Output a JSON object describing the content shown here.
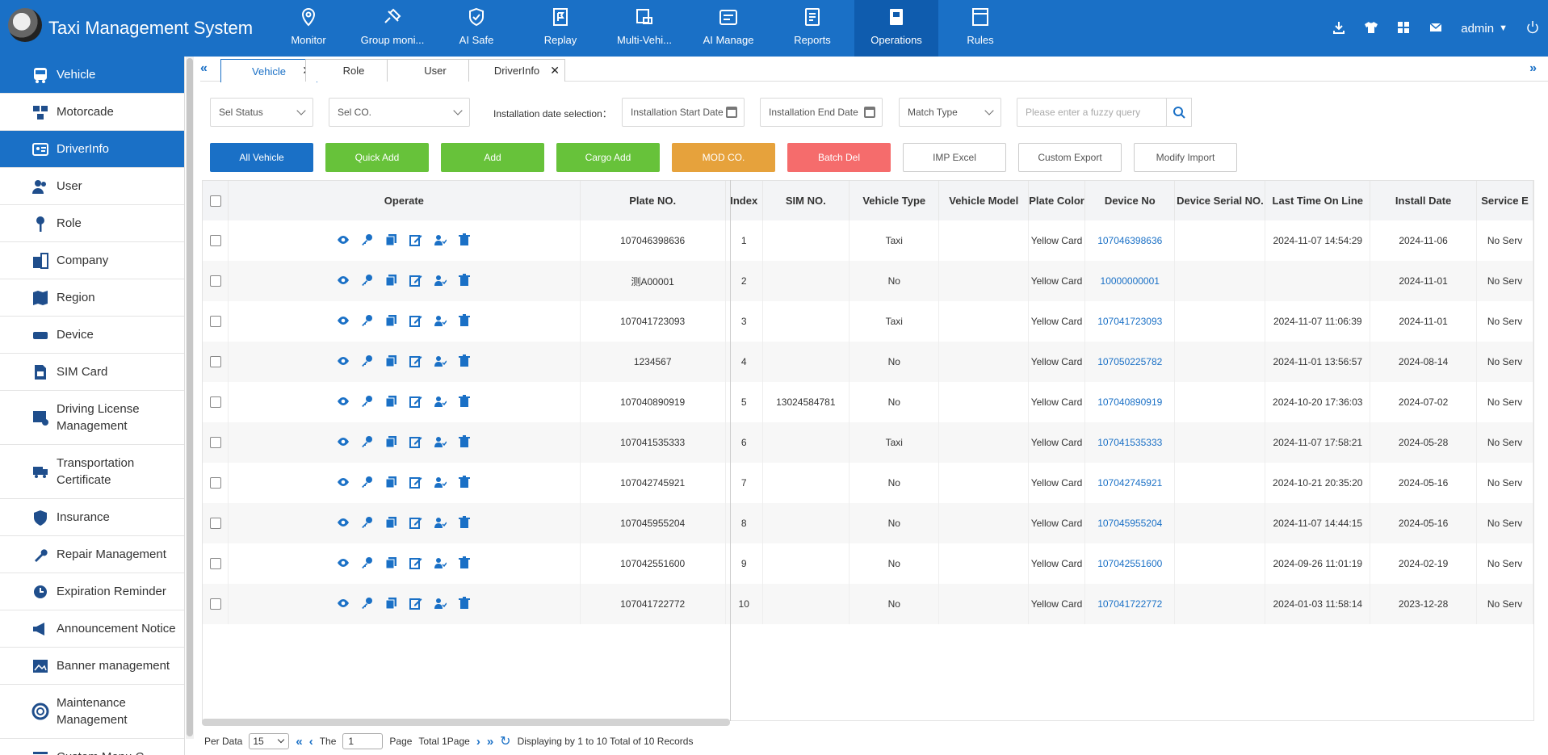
{
  "app": {
    "title": "Taxi Management System"
  },
  "nav": [
    {
      "label": "Monitor",
      "icon": "location-pin-icon"
    },
    {
      "label": "Group moni...",
      "icon": "satellite-icon"
    },
    {
      "label": "AI Safe",
      "icon": "shield-check-icon"
    },
    {
      "label": "Replay",
      "icon": "flag-icon"
    },
    {
      "label": "Multi-Vehi...",
      "icon": "multi-vehicle-icon"
    },
    {
      "label": "AI Manage",
      "icon": "id-card-icon"
    },
    {
      "label": "Reports",
      "icon": "report-icon"
    },
    {
      "label": "Operations",
      "icon": "operations-icon",
      "active": true
    },
    {
      "label": "Rules",
      "icon": "rules-icon"
    }
  ],
  "header_right": {
    "user": "admin"
  },
  "sidebar": [
    {
      "label": "Vehicle",
      "icon": "bus-icon",
      "active": true
    },
    {
      "label": "Motorcade",
      "icon": "motorcade-icon"
    },
    {
      "label": "DriverInfo",
      "icon": "driver-card-icon",
      "active": true
    },
    {
      "label": "User",
      "icon": "users-icon"
    },
    {
      "label": "Role",
      "icon": "key-icon"
    },
    {
      "label": "Company",
      "icon": "company-icon"
    },
    {
      "label": "Region",
      "icon": "map-icon"
    },
    {
      "label": "Device",
      "icon": "device-icon"
    },
    {
      "label": "SIM Card",
      "icon": "sim-card-icon"
    },
    {
      "label": "Driving License Management",
      "icon": "license-icon",
      "tall": true
    },
    {
      "label": "Transportation Certificate",
      "icon": "truck-certificate-icon",
      "tall": true
    },
    {
      "label": "Insurance",
      "icon": "insurance-icon"
    },
    {
      "label": "Repair Management",
      "icon": "wrench-icon"
    },
    {
      "label": "Expiration Reminder",
      "icon": "clock-icon"
    },
    {
      "label": "Announcement Notice",
      "icon": "megaphone-icon"
    },
    {
      "label": "Banner management",
      "icon": "banner-icon"
    },
    {
      "label": "Maintenance Management",
      "icon": "lifebuoy-icon",
      "tall": true
    },
    {
      "label": "Custom Menu C...",
      "icon": "menu-icon"
    }
  ],
  "tabs": [
    {
      "label": "Vehicle",
      "active": true
    },
    {
      "label": "Role"
    },
    {
      "label": "User"
    },
    {
      "label": "DriverInfo"
    }
  ],
  "filters": {
    "status": "Sel Status",
    "company": "Sel CO.",
    "date_label": "Installation date selection：",
    "start_date": "Installation Start Date",
    "end_date": "Installation End Date",
    "match_type": "Match Type",
    "search_placeholder": "Please enter a fuzzy query"
  },
  "buttons": [
    {
      "label": "All Vehicle",
      "color": "#1a70c6"
    },
    {
      "label": "Quick Add",
      "color": "#67c23a"
    },
    {
      "label": "Add",
      "color": "#67c23a"
    },
    {
      "label": "Cargo Add",
      "color": "#67c23a"
    },
    {
      "label": "MOD CO.",
      "color": "#e6a23c"
    },
    {
      "label": "Batch Del",
      "color": "#f56c6c"
    },
    {
      "label": "IMP Excel",
      "color": "#ffffff"
    },
    {
      "label": "Custom Export",
      "color": "#ffffff"
    },
    {
      "label": "Modify Import",
      "color": "#ffffff"
    }
  ],
  "table": {
    "columns": [
      "Operate",
      "Plate NO.",
      "Index",
      "SIM NO.",
      "Vehicle Type",
      "Vehicle Model",
      "Plate Color",
      "Device No",
      "Device Serial NO.",
      "Last Time On Line",
      "Install Date",
      "Service E"
    ],
    "rows": [
      {
        "plate": "107046398636",
        "index": "1",
        "sim": "",
        "type": "Taxi",
        "model": "",
        "color": "Yellow Card",
        "device": "107046398636",
        "serial": "",
        "last": "2024-11-07 14:54:29",
        "install": "2024-11-06",
        "service": "No Serv"
      },
      {
        "plate": "测A00001",
        "index": "2",
        "sim": "",
        "type": "No",
        "model": "",
        "color": "Yellow Card",
        "device": "10000000001",
        "serial": "",
        "last": "",
        "install": "2024-11-01",
        "service": "No Serv"
      },
      {
        "plate": "107041723093",
        "index": "3",
        "sim": "",
        "type": "Taxi",
        "model": "",
        "color": "Yellow Card",
        "device": "107041723093",
        "serial": "",
        "last": "2024-11-07 11:06:39",
        "install": "2024-11-01",
        "service": "No Serv"
      },
      {
        "plate": "1234567",
        "index": "4",
        "sim": "",
        "type": "No",
        "model": "",
        "color": "Yellow Card",
        "device": "107050225782",
        "serial": "",
        "last": "2024-11-01 13:56:57",
        "install": "2024-08-14",
        "service": "No Serv"
      },
      {
        "plate": "107040890919",
        "index": "5",
        "sim": "13024584781",
        "type": "No",
        "model": "",
        "color": "Yellow Card",
        "device": "107040890919",
        "serial": "",
        "last": "2024-10-20 17:36:03",
        "install": "2024-07-02",
        "service": "No Serv"
      },
      {
        "plate": "107041535333",
        "index": "6",
        "sim": "",
        "type": "Taxi",
        "model": "",
        "color": "Yellow Card",
        "device": "107041535333",
        "serial": "",
        "last": "2024-11-07 17:58:21",
        "install": "2024-05-28",
        "service": "No Serv"
      },
      {
        "plate": "107042745921",
        "index": "7",
        "sim": "",
        "type": "No",
        "model": "",
        "color": "Yellow Card",
        "device": "107042745921",
        "serial": "",
        "last": "2024-10-21 20:35:20",
        "install": "2024-05-16",
        "service": "No Serv"
      },
      {
        "plate": "107045955204",
        "index": "8",
        "sim": "",
        "type": "No",
        "model": "",
        "color": "Yellow Card",
        "device": "107045955204",
        "serial": "",
        "last": "2024-11-07 14:44:15",
        "install": "2024-05-16",
        "service": "No Serv"
      },
      {
        "plate": "107042551600",
        "index": "9",
        "sim": "",
        "type": "No",
        "model": "",
        "color": "Yellow Card",
        "device": "107042551600",
        "serial": "",
        "last": "2024-09-26 11:01:19",
        "install": "2024-02-19",
        "service": "No Serv"
      },
      {
        "plate": "107041722772",
        "index": "10",
        "sim": "",
        "type": "No",
        "model": "",
        "color": "Yellow Card",
        "device": "107041722772",
        "serial": "",
        "last": "2024-01-03 11:58:14",
        "install": "2023-12-28",
        "service": "No Serv"
      }
    ]
  },
  "pager": {
    "per_data_label": "Per Data",
    "per_data_value": "15",
    "the_label": "The",
    "page_value": "1",
    "page_label": "Page",
    "total_label": "Total 1Page",
    "summary": "Displaying by 1 to 10 Total of 10 Records"
  }
}
